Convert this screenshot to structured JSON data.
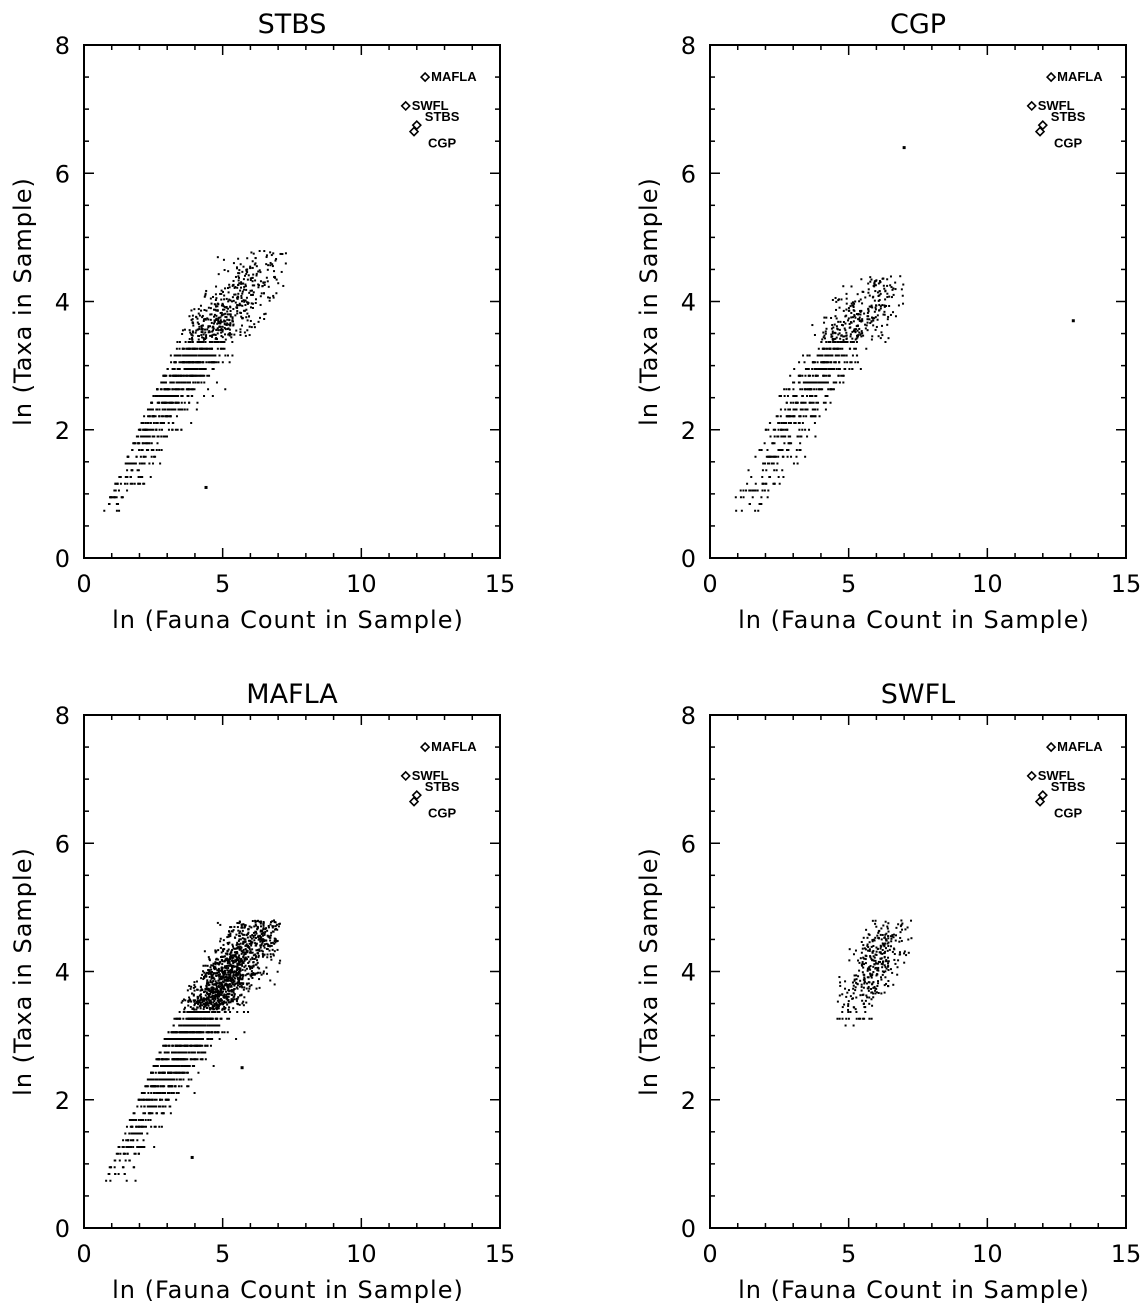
{
  "chart_data": [
    {
      "type": "scatter",
      "title": "STBS",
      "xlabel": "ln (Fauna Count in Sample)",
      "ylabel": "ln (Taxa in Sample)",
      "xlim": [
        0,
        15
      ],
      "ylim": [
        0,
        8
      ],
      "xticks": [
        0,
        5,
        10,
        15
      ],
      "yticks": [
        0,
        2,
        4,
        6,
        8
      ],
      "cloud": {
        "x_range": [
          0.7,
          7.4
        ],
        "y_range": [
          0.69,
          4.8
        ],
        "center_x": 3.9,
        "center_y": 3.2,
        "n_points": 1200
      },
      "outliers": [
        {
          "x": 4.4,
          "y": 1.1
        }
      ]
    },
    {
      "type": "scatter",
      "title": "CGP",
      "xlabel": "ln (Fauna Count in Sample)",
      "ylabel": "ln (Taxa in Sample)",
      "xlim": [
        0,
        15
      ],
      "ylim": [
        0,
        8
      ],
      "xticks": [
        0,
        5,
        10,
        15
      ],
      "yticks": [
        0,
        2,
        4,
        6,
        8
      ],
      "cloud": {
        "x_range": [
          0.7,
          7.0
        ],
        "y_range": [
          0.69,
          4.4
        ],
        "center_x": 4.3,
        "center_y": 3.2,
        "n_points": 800
      },
      "outliers": [
        {
          "x": 7.0,
          "y": 6.4
        },
        {
          "x": 13.1,
          "y": 3.7
        }
      ]
    },
    {
      "type": "scatter",
      "title": "MAFLA",
      "xlabel": "ln (Fauna Count in Sample)",
      "ylabel": "ln (Taxa in Sample)",
      "xlim": [
        0,
        15
      ],
      "ylim": [
        0,
        8
      ],
      "xticks": [
        0,
        5,
        10,
        15
      ],
      "yticks": [
        0,
        2,
        4,
        6,
        8
      ],
      "cloud": {
        "x_range": [
          0.7,
          7.1
        ],
        "y_range": [
          0.69,
          4.8
        ],
        "center_x": 4.5,
        "center_y": 3.6,
        "n_points": 2200
      },
      "outliers": [
        {
          "x": 3.9,
          "y": 1.1
        },
        {
          "x": 5.7,
          "y": 2.5
        }
      ]
    },
    {
      "type": "scatter",
      "title": "SWFL",
      "xlabel": "ln (Fauna Count in Sample)",
      "ylabel": "ln (Taxa in Sample)",
      "xlim": [
        0,
        15
      ],
      "ylim": [
        0,
        8
      ],
      "xticks": [
        0,
        5,
        10,
        15
      ],
      "yticks": [
        0,
        2,
        4,
        6,
        8
      ],
      "cloud": {
        "x_range": [
          4.3,
          7.3
        ],
        "y_range": [
          3.2,
          4.8
        ],
        "center_x": 5.9,
        "center_y": 4.2,
        "n_points": 350
      },
      "outliers": []
    }
  ],
  "markers": [
    {
      "label": "MAFLA",
      "x": 12.3,
      "y": 7.5
    },
    {
      "label": "SWFL",
      "x": 11.6,
      "y": 7.05
    },
    {
      "label": "STBS",
      "x": 12.0,
      "y": 6.75
    },
    {
      "label": "CGP",
      "x": 11.9,
      "y": 6.65
    }
  ]
}
